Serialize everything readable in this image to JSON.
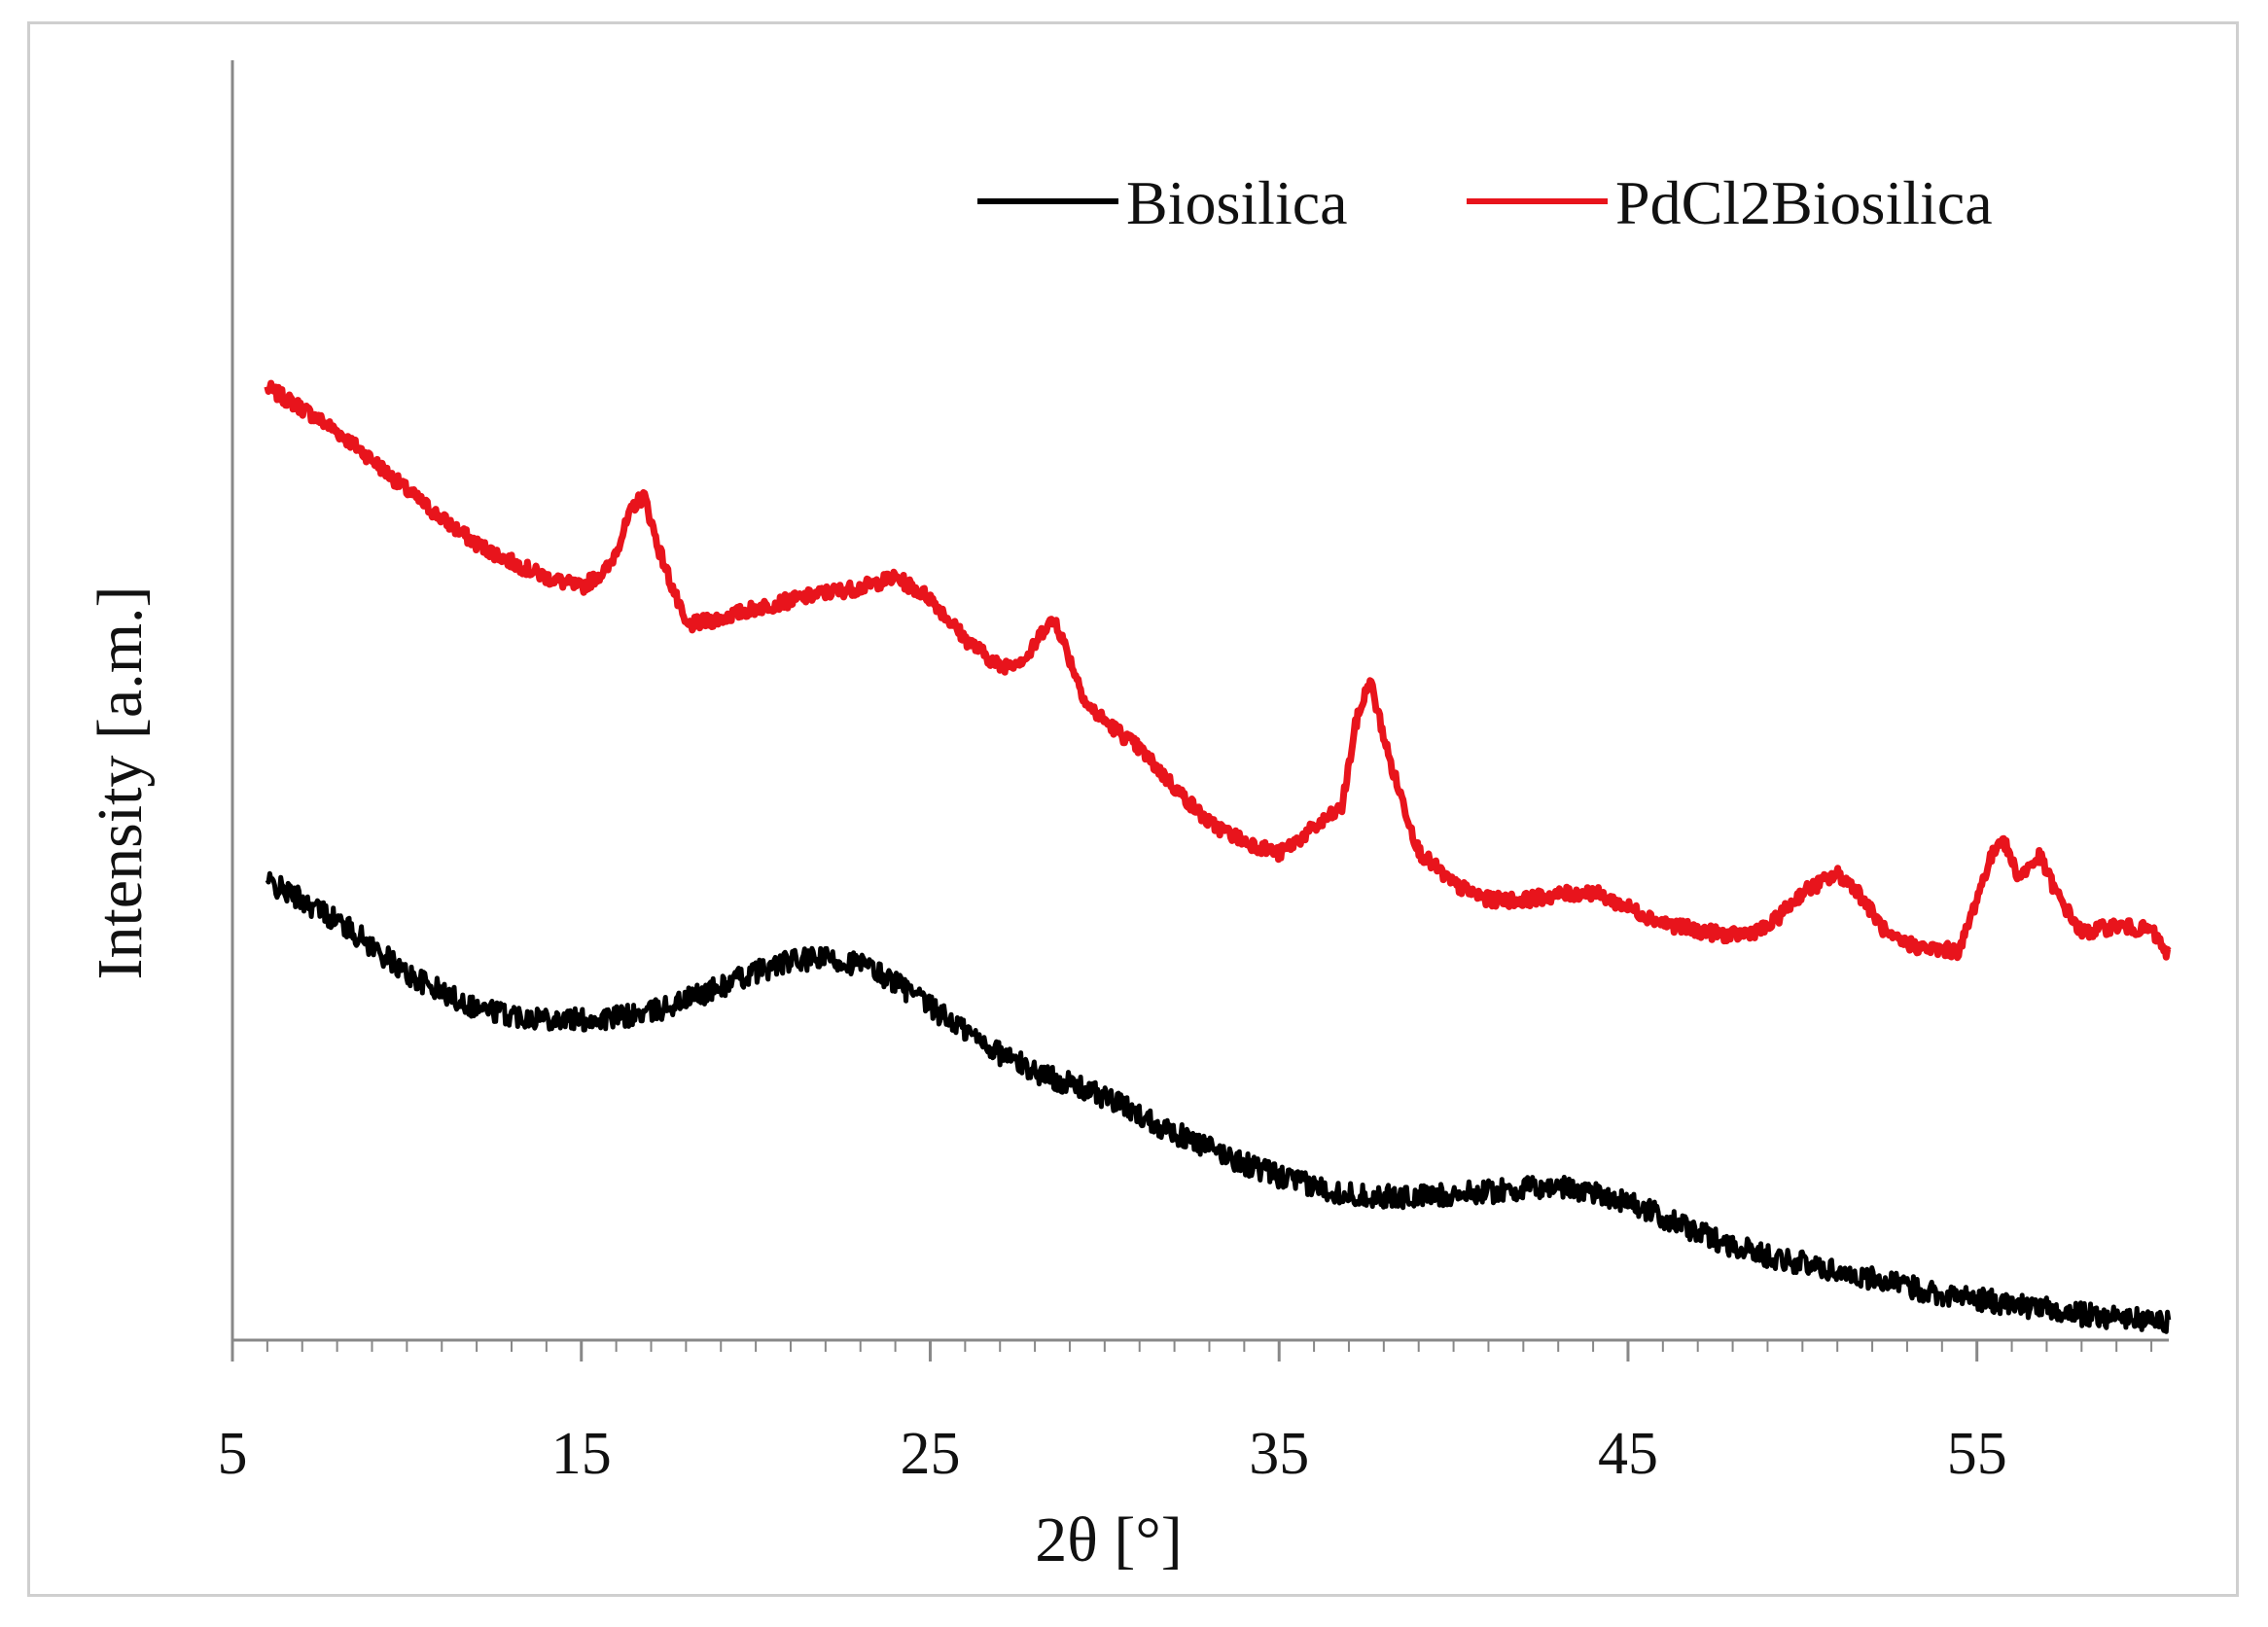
{
  "chart_data": {
    "type": "line",
    "title": "",
    "xlabel": "2θ [°]",
    "ylabel": "Intensity [a.m.]",
    "xlim": [
      5,
      60.5
    ],
    "ylim": [
      0,
      100
    ],
    "x_ticks": [
      "5",
      "15",
      "25",
      "35",
      "45",
      "55"
    ],
    "x_tick_values": [
      5,
      15,
      25,
      35,
      45,
      55
    ],
    "y_ticks_shown": false,
    "grid": false,
    "legend_position": "top-right",
    "series": [
      {
        "name": "Biosilica",
        "color": "#000000",
        "x": [
          6,
          7,
          8,
          9,
          10,
          11,
          12,
          13,
          14,
          15,
          16,
          17,
          18,
          19,
          20,
          21,
          22,
          23,
          24,
          25,
          26,
          27,
          28,
          29,
          30,
          31,
          32,
          33,
          34,
          35,
          36,
          37,
          38,
          39,
          40,
          41,
          42,
          43,
          44,
          45,
          46,
          47,
          48,
          49,
          50,
          51,
          52,
          53,
          54,
          55,
          56,
          57,
          58,
          59,
          60,
          60.5
        ],
        "y": [
          35.8,
          34.4,
          32.8,
          30.8,
          28.6,
          27.2,
          26.0,
          25.4,
          25.2,
          25.0,
          25.2,
          25.6,
          26.6,
          27.6,
          28.8,
          29.6,
          29.8,
          29.4,
          28.0,
          26.0,
          24.2,
          22.4,
          21.0,
          20.0,
          19.0,
          17.6,
          16.2,
          15.0,
          13.8,
          12.8,
          12.0,
          11.4,
          11.2,
          11.2,
          11.4,
          11.6,
          11.8,
          12.0,
          11.6,
          10.8,
          9.6,
          8.4,
          7.4,
          6.6,
          6.0,
          5.4,
          4.8,
          4.2,
          3.6,
          3.2,
          2.8,
          2.4,
          2.0,
          1.8,
          1.5,
          1.4
        ]
      },
      {
        "name": "PdCl2Biosilica",
        "color": "#e8141c",
        "x": [
          6,
          7,
          8,
          9,
          10,
          11,
          12,
          13,
          14,
          15,
          15.8,
          16.5,
          16.8,
          17.2,
          18,
          19,
          20,
          21,
          22,
          23,
          24,
          25,
          26,
          27,
          27.8,
          28.3,
          28.6,
          29,
          29.5,
          30,
          31,
          32,
          33,
          34,
          35,
          36,
          36.8,
          37.2,
          37.6,
          38.2,
          39,
          40,
          41,
          42,
          43,
          44,
          45,
          46,
          47,
          48,
          49,
          50,
          51,
          51.5,
          52.5,
          53.5,
          54.5,
          55.3,
          55.7,
          56.2,
          56.8,
          57.3,
          58,
          59,
          60,
          60.5
        ]
      }
    ]
  },
  "red_y": [
    74.4,
    72.8,
    71.0,
    68.8,
    66.4,
    64.2,
    62.2,
    60.8,
    59.6,
    58.8,
    60.4,
    65.2,
    66.0,
    62.0,
    55.8,
    56.4,
    57.2,
    57.8,
    58.4,
    58.8,
    59.6,
    58.0,
    54.8,
    52.6,
    53.4,
    55.8,
    56.2,
    53.2,
    49.6,
    48.4,
    46.2,
    43.2,
    40.4,
    39.0,
    38.0,
    40.0,
    41.6,
    48.2,
    51.6,
    45.0,
    38.2,
    35.6,
    34.4,
    34.4,
    34.8,
    35.0,
    33.8,
    32.6,
    32.0,
    31.6,
    32.2,
    35.0,
    36.4,
    35.4,
    31.4,
    30.6,
    30.4,
    37.0,
    39.4,
    36.2,
    37.8,
    34.8,
    31.8,
    32.4,
    32.0,
    30.0
  ]
}
